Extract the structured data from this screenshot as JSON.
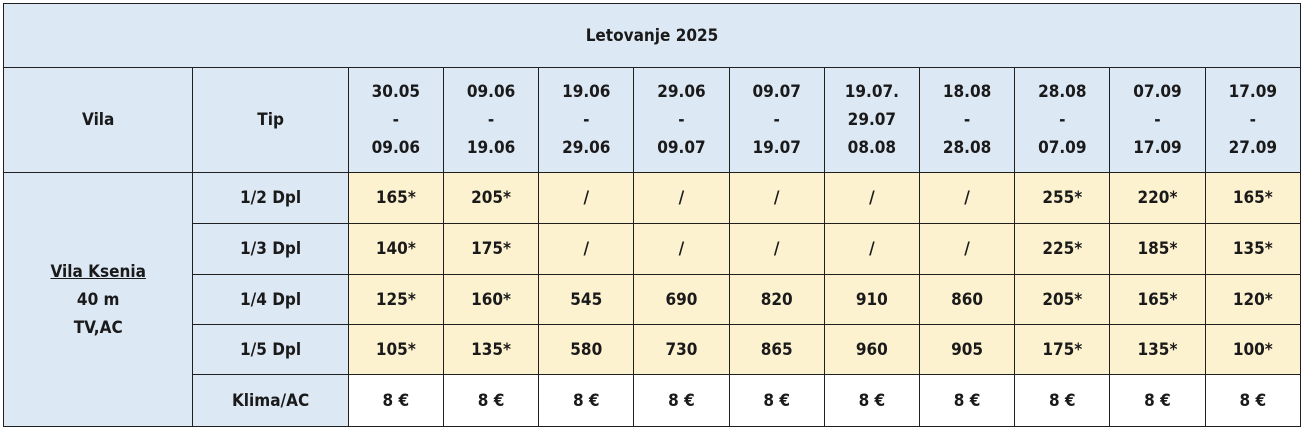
{
  "title": "Letovanje 2025",
  "columns": {
    "vila": "Vila",
    "tip": "Tip",
    "periods": [
      [
        "30.05",
        "-",
        "09.06"
      ],
      [
        "09.06",
        "-",
        "19.06"
      ],
      [
        "19.06",
        "-",
        "29.06"
      ],
      [
        "29.06",
        "-",
        "09.07"
      ],
      [
        "09.07",
        "-",
        "19.07"
      ],
      [
        "19.07.",
        "29.07",
        "08.08"
      ],
      [
        "18.08",
        "-",
        "28.08"
      ],
      [
        "28.08",
        "-",
        "07.09"
      ],
      [
        "07.09",
        "-",
        "17.09"
      ],
      [
        "17.09",
        "-",
        "27.09"
      ]
    ]
  },
  "villa": {
    "name": "Vila Ksenia",
    "size": "40 m",
    "amenities": "TV,AC"
  },
  "rows": [
    {
      "tip": "1/2 Dpl",
      "prices": [
        "165*",
        "205*",
        "/",
        "/",
        "/",
        "/",
        "/",
        "255*",
        "220*",
        "165*"
      ]
    },
    {
      "tip": "1/3 Dpl",
      "prices": [
        "140*",
        "175*",
        "/",
        "/",
        "/",
        "/",
        "/",
        "225*",
        "185*",
        "135*"
      ]
    },
    {
      "tip": "1/4 Dpl",
      "prices": [
        "125*",
        "160*",
        "545",
        "690",
        "820",
        "910",
        "860",
        "205*",
        "165*",
        "120*"
      ]
    },
    {
      "tip": "1/5 Dpl",
      "prices": [
        "105*",
        "135*",
        "580",
        "730",
        "865",
        "960",
        "905",
        "175*",
        "135*",
        "100*"
      ]
    },
    {
      "tip": "Klima/AC",
      "prices": [
        "8 €",
        "8 €",
        "8 €",
        "8 €",
        "8 €",
        "8 €",
        "8 €",
        "8 €",
        "8 €",
        "8 €"
      ]
    }
  ]
}
